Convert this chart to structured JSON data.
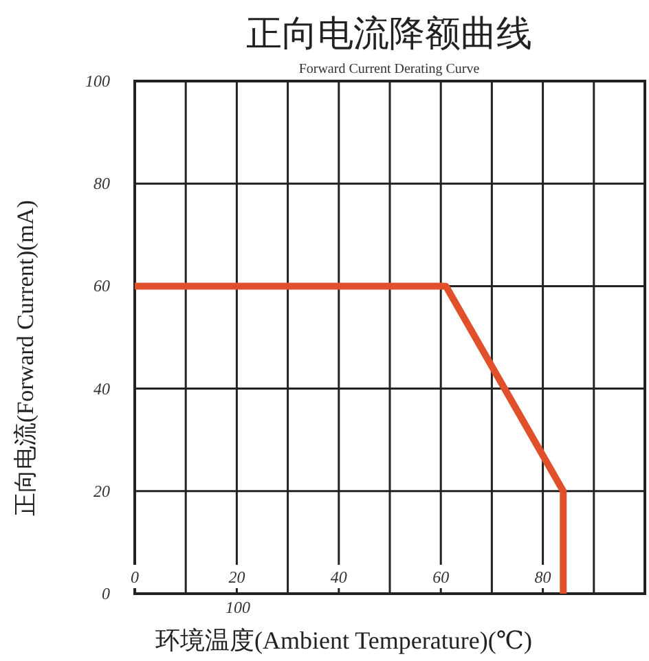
{
  "chart_data": {
    "type": "line",
    "title": "正向电流降额曲线",
    "subtitle": "Forward Current Derating Curve",
    "xlabel": "环境温度(Ambient Temperature)(℃)",
    "ylabel": "正向电流(Forward Current)(mA)",
    "x": [
      0,
      61,
      84,
      84
    ],
    "series": [
      {
        "color": "#e0502a",
        "values": [
          60,
          60,
          20,
          0
        ]
      }
    ],
    "xlim": [
      0,
      100
    ],
    "ylim": [
      0,
      100
    ],
    "xticks": [
      0,
      {
        "value": 10,
        "label": null
      },
      20,
      {
        "value": 30,
        "label": null
      },
      40,
      {
        "value": 50,
        "label": null
      },
      60,
      {
        "value": 70,
        "label": null
      },
      80,
      {
        "value": 90,
        "label": null
      },
      {
        "value": 100,
        "label": null
      }
    ],
    "yticks": [
      0,
      20,
      40,
      60,
      80,
      100
    ],
    "grid": true,
    "marker": "none",
    "line_style": "solid",
    "annotations": [
      "100"
    ]
  }
}
